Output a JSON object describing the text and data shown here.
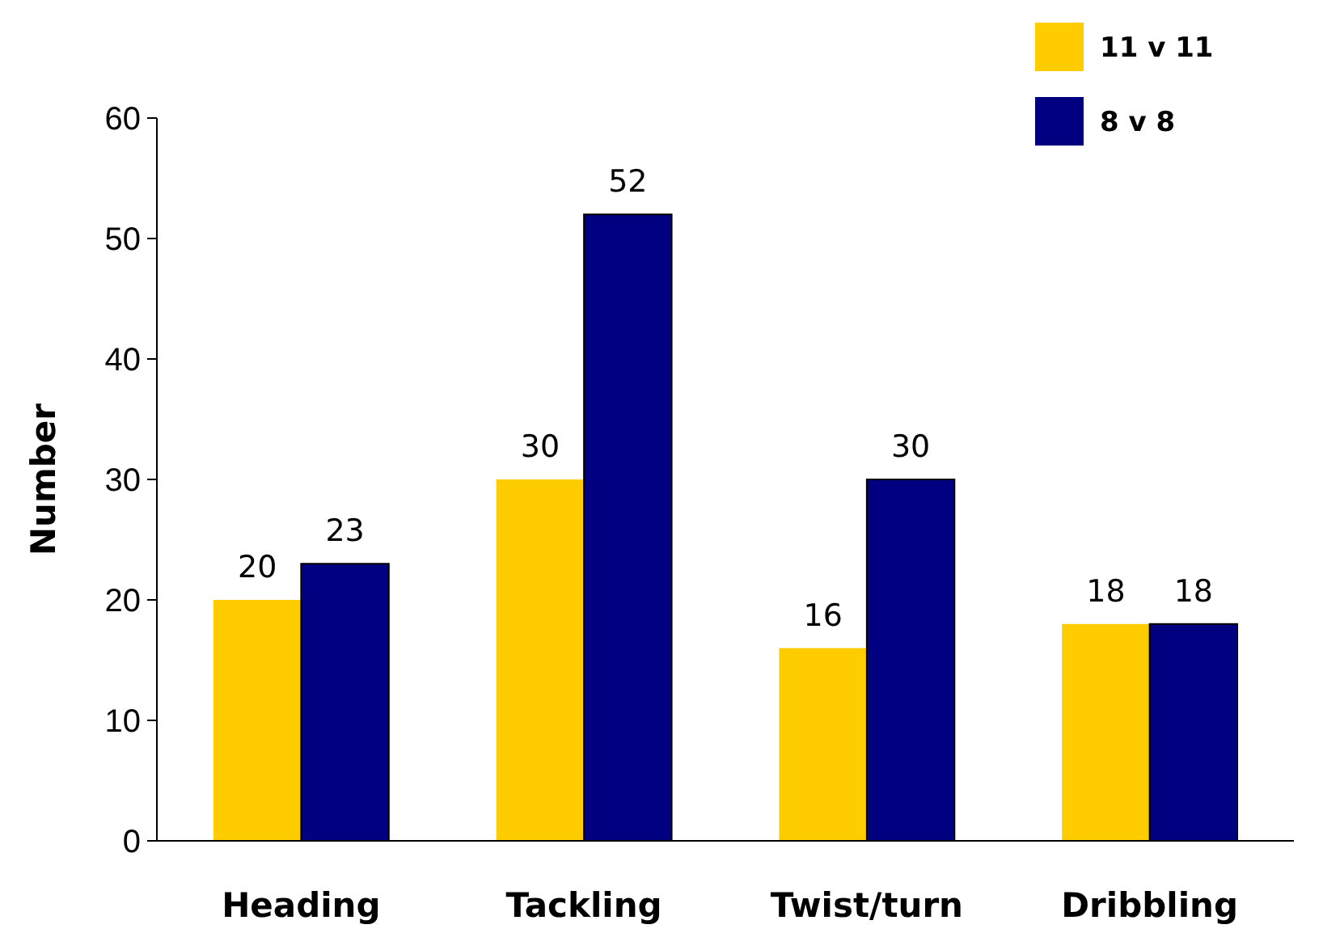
{
  "chart_data": {
    "type": "bar",
    "ylabel": "Number",
    "categories": [
      "Heading",
      "Tackling",
      "Twist/turn",
      "Dribbling"
    ],
    "series": [
      {
        "name": "11 v 11",
        "color": "#ffcc00",
        "values": [
          20,
          30,
          16,
          18
        ]
      },
      {
        "name": "8 v 8",
        "color": "#000080",
        "values": [
          23,
          52,
          30,
          18
        ]
      }
    ],
    "ylim": [
      0,
      60
    ],
    "yticks": [
      0,
      10,
      20,
      30,
      40,
      50,
      60
    ],
    "data_labels": true,
    "legend": "top right",
    "grid": false
  }
}
